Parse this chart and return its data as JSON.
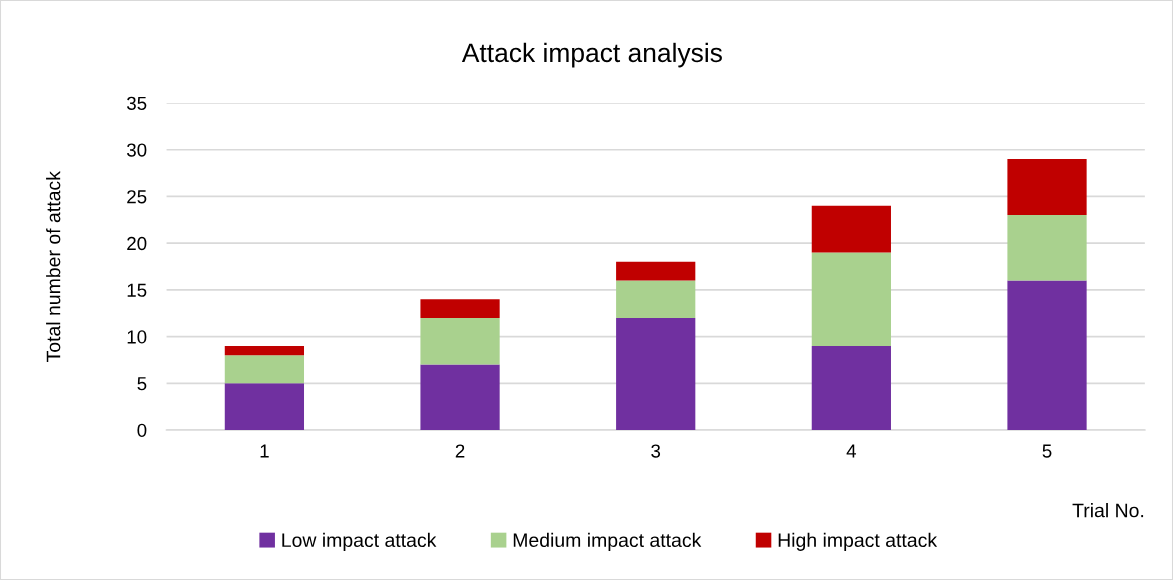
{
  "chart_data": {
    "type": "bar",
    "title": "Attack impact analysis",
    "xlabel": "Trial No.",
    "ylabel": "Total number of attack",
    "categories": [
      "1",
      "2",
      "3",
      "4",
      "5"
    ],
    "stacked": true,
    "series": [
      {
        "name": "Low impact attack",
        "color": "#7030a0",
        "values": [
          5,
          7,
          12,
          9,
          16
        ]
      },
      {
        "name": "Medium impact attack",
        "color": "#a9d18e",
        "values": [
          3,
          5,
          4,
          10,
          7
        ]
      },
      {
        "name": "High impact attack",
        "color": "#c00000",
        "values": [
          1,
          2,
          2,
          5,
          6
        ]
      }
    ],
    "ylim": [
      0,
      35
    ],
    "yticks": [
      0,
      5,
      10,
      15,
      20,
      25,
      30,
      35
    ],
    "grid": "y",
    "legend": "bottom"
  }
}
